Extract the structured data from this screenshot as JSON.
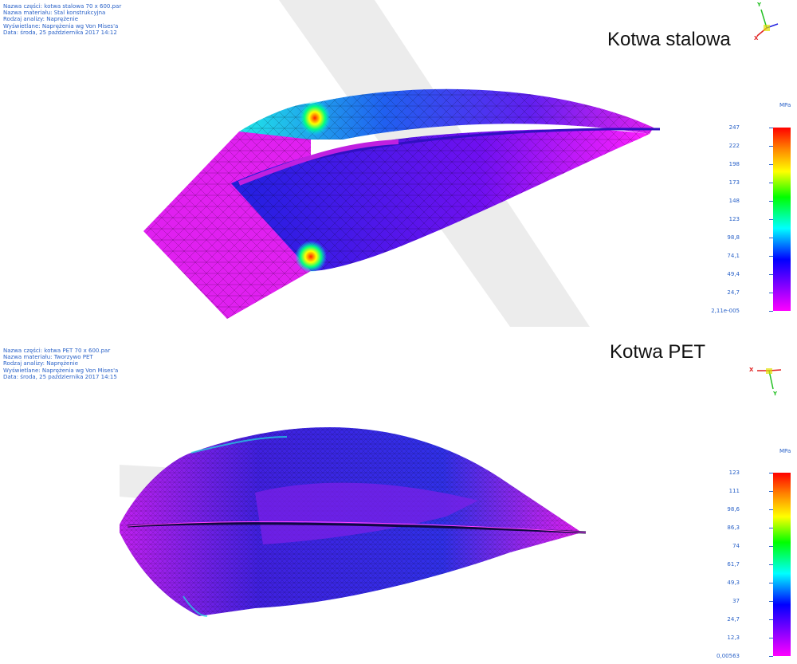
{
  "top_view": {
    "title": "Kotwa stalowa",
    "info": {
      "part": "Nazwa części: kotwa stalowa 70 x 600.par",
      "material": "Nazwa materiału: Stal konstrukcyjna",
      "analysis": "Rodzaj analizy: Naprężenie",
      "displayed": "Wyświetlane: Naprężenia wg Von Mises'a",
      "date": "Data: środa, 25 października 2017 14:12"
    },
    "legend": {
      "unit": "MPa",
      "ticks": [
        "247",
        "222",
        "198",
        "173",
        "148",
        "123",
        "98,8",
        "74,1",
        "49,4",
        "24,7",
        "2,11e-005"
      ]
    },
    "axes": {
      "x": "X",
      "y": "Y"
    }
  },
  "bottom_view": {
    "title": "Kotwa PET",
    "info": {
      "part": "Nazwa części: kotwa PET 70 x 600.par",
      "material": "Nazwa materiału: Tworzywo PET",
      "analysis": "Rodzaj analizy: Naprężenie",
      "displayed": "Wyświetlane: Naprężenia wg Von Mises'a",
      "date": "Data: środa, 25 października 2017 14:15"
    },
    "legend": {
      "unit": "MPa",
      "ticks": [
        "123",
        "111",
        "98,6",
        "86,3",
        "74",
        "61,7",
        "49,3",
        "37",
        "24,7",
        "12,3",
        "0,00563"
      ]
    },
    "axes": {
      "x": "X",
      "y": "Y"
    }
  },
  "colors": {
    "label_blue": "#2a62c8",
    "mesh_magenta": "#e81cf0",
    "mesh_blue": "#2a2ae8",
    "scale": [
      "#ff0000",
      "#ff8800",
      "#ffff00",
      "#00ff00",
      "#00ffff",
      "#0000ff",
      "#ff00ff"
    ]
  }
}
